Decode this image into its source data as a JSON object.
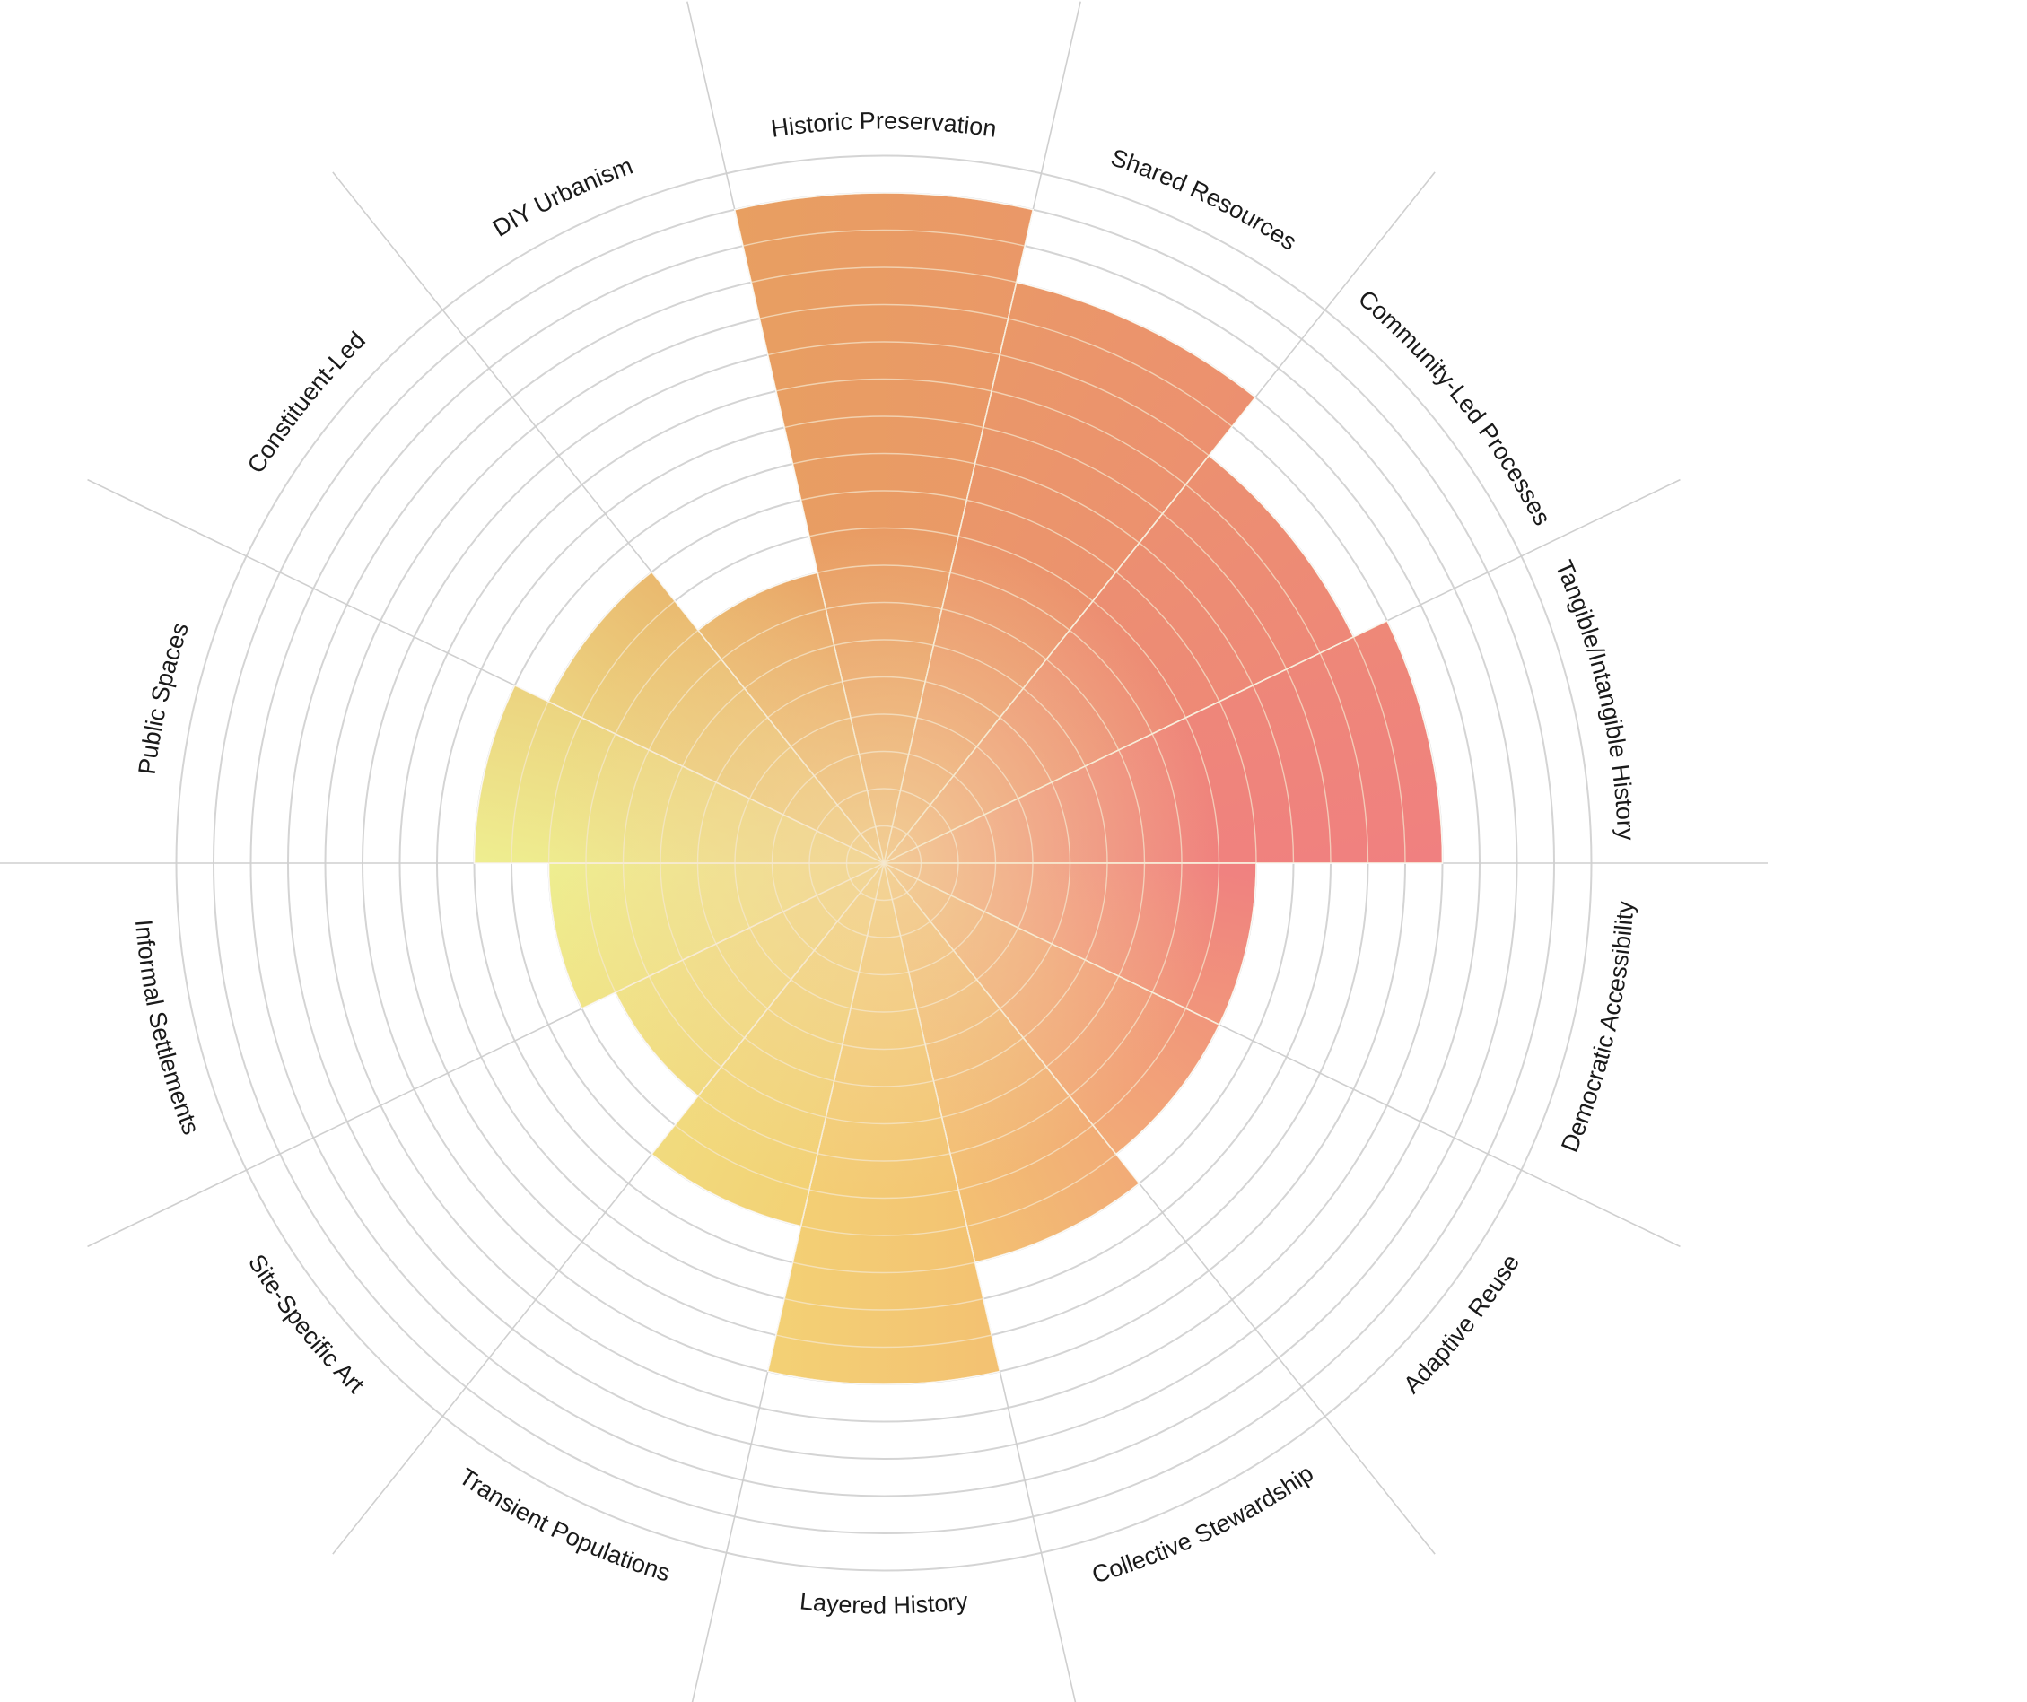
{
  "chart_data": {
    "type": "polar-bar",
    "title": "",
    "rings": 19,
    "rmax": 19,
    "categories": [
      "Historic Preservation",
      "Shared Resources",
      "Community-Led Processes",
      "Tangible/Intangible History",
      "Democratic Accessibility",
      "Adaptive Reuse",
      "Collective Stewardship",
      "Layered History",
      "Transient Populations",
      "Site-Specific Art",
      "Informal Settlements",
      "Public Spaces",
      "Constituent-Led",
      "DIY Urbanism"
    ],
    "values": [
      18,
      16,
      14,
      15,
      10,
      10,
      11,
      14,
      10,
      8,
      9,
      11,
      10,
      8
    ],
    "colors": {
      "high": "#f08080",
      "mid": "#e8a060",
      "low": "#f4cc70",
      "left": "#eeee90",
      "spokes": "#cfcfcf",
      "rings": "#d4d4d4",
      "inner_lines": "#f5e8d0"
    }
  }
}
